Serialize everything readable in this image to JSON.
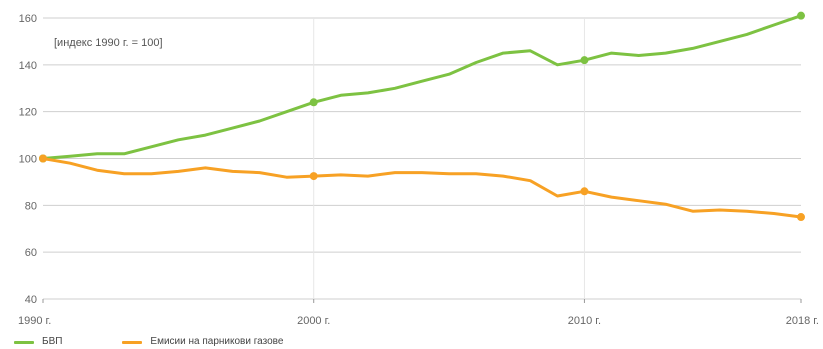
{
  "chart_data": {
    "type": "line",
    "annotation": "[индекс 1990 г. = 100]",
    "x_tick_labels": [
      {
        "x": 1990,
        "label": "1990 г."
      },
      {
        "x": 2000,
        "label": "2000 г."
      },
      {
        "x": 2010,
        "label": "2010 г."
      },
      {
        "x": 2018,
        "label": "2018 г."
      }
    ],
    "y_ticks": [
      40,
      60,
      80,
      100,
      120,
      140,
      160
    ],
    "xlim": [
      1990,
      2018
    ],
    "ylim": [
      40,
      160
    ],
    "grid": "horizontal",
    "legend_position": "bottom-left",
    "x": [
      1990,
      1991,
      1992,
      1993,
      1994,
      1995,
      1996,
      1997,
      1998,
      1999,
      2000,
      2001,
      2002,
      2003,
      2004,
      2005,
      2006,
      2007,
      2008,
      2009,
      2010,
      2011,
      2012,
      2013,
      2014,
      2015,
      2016,
      2017,
      2018
    ],
    "series": [
      {
        "name": "БВП",
        "color": "#7dc242",
        "marker_x": [
          1990,
          2000,
          2010,
          2018
        ],
        "values": [
          100,
          101,
          102,
          102,
          105,
          108,
          110,
          113,
          116,
          120,
          124,
          127,
          128,
          130,
          133,
          136,
          141,
          145,
          146,
          140,
          142,
          145,
          144,
          145,
          147,
          150,
          153,
          157,
          161
        ]
      },
      {
        "name": "Емисии на парникови газове",
        "color": "#f7a124",
        "marker_x": [
          1990,
          2000,
          2010,
          2018
        ],
        "values": [
          100,
          98,
          95,
          93.5,
          93.5,
          94.5,
          96,
          94.5,
          94,
          92,
          92.5,
          93,
          92.5,
          94,
          94,
          93.5,
          93.5,
          92.5,
          90.5,
          84,
          86,
          83.5,
          82,
          80.5,
          77.5,
          78,
          77.5,
          76.5,
          75
        ]
      }
    ]
  }
}
